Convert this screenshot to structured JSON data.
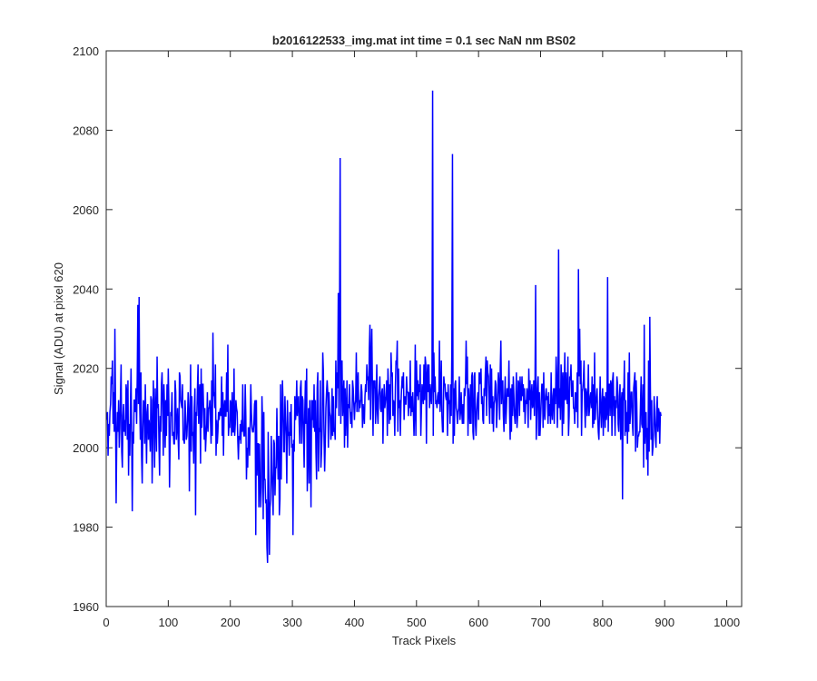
{
  "chart_data": {
    "type": "line",
    "title": "b2016122533_img.mat int time = 0.1 sec  NaN nm BS02",
    "xlabel": "Track Pixels",
    "ylabel": "Signal (ADU) at pixel 620",
    "xlim": [
      0,
      1024
    ],
    "ylim": [
      1960,
      2100
    ],
    "xticks": [
      0,
      100,
      200,
      300,
      400,
      500,
      600,
      700,
      800,
      900,
      1000
    ],
    "yticks": [
      1960,
      1980,
      2000,
      2020,
      2040,
      2060,
      2080,
      2100
    ],
    "grid": false,
    "box": true,
    "line_color": "#0000FF",
    "axis_color": "#262626",
    "series": [
      {
        "x_start": 1,
        "x_step": 1,
        "values": [
          2007,
          2009,
          1998,
          2006,
          2003,
          2009,
          2011,
          2018,
          2016,
          2022,
          2006,
          2014,
          2004,
          2030,
          2011,
          1986,
          2002,
          2009,
          2004,
          2012,
          2000,
          2005,
          2013,
          2021,
          1999,
          1995,
          2008,
          2011,
          2004,
          2007,
          2003,
          2016,
          2014,
          2002,
          2017,
          1993,
          2006,
          1998,
          2010,
          2020,
          2003,
          1984,
          2004,
          2001,
          2012,
          2012,
          2009,
          2015,
          2006,
          2018,
          2036,
          2011,
          2038,
          2011,
          2002,
          2019,
          1998,
          1991,
          2005,
          2012,
          2011,
          2001,
          2016,
          2006,
          1996,
          2009,
          2011,
          2002,
          2007,
          2004,
          1999,
          2013,
          2012,
          1991,
          2002,
          2017,
          2008,
          1995,
          2015,
          2008,
          1999,
          2023,
          2010,
          2011,
          2001,
          1993,
          2008,
          2004,
          2016,
          2019,
          2011,
          1998,
          2016,
          2010,
          2000,
          2012,
          2003,
          2016,
          2008,
          2020,
          2011,
          1990,
          2001,
          2009,
          2008,
          2014,
          2003,
          2004,
          2001,
          2001,
          2017,
          2014,
          2002,
          2005,
          2010,
          2002,
          1997,
          2019,
          2018,
          2012,
          2011,
          2010,
          2016,
          2002,
          2002,
          2001,
          2012,
          2008,
          2002,
          2003,
          2007,
          2014,
          2010,
          1989,
          2006,
          2021,
          1999,
          2013,
          2003,
          2004,
          1996,
          2010,
          2015,
          1983,
          2009,
          2008,
          2015,
          2021,
          2006,
          2014,
          2016,
          1996,
          2020,
          2005,
          2016,
          2016,
          2009,
          2002,
          2010,
          1999,
          2003,
          2006,
          2014,
          2004,
          2010,
          2010,
          2012,
          2007,
          2001,
          2017,
          2003,
          2029,
          2013,
          2014,
          2010,
          2021,
          1998,
          2007,
          2001,
          2004,
          2009,
          2007,
          2009,
          2010,
          2008,
          2018,
          2003,
          2014,
          1998,
          2010,
          2012,
          2008,
          2008,
          2019,
          2009,
          2026,
          2003,
          2006,
          2005,
          2012,
          2011,
          2003,
          2014,
          2004,
          2004,
          2020,
          2003,
          2006,
          2012,
          2010,
          2009,
          2002,
          1997,
          2003,
          2002,
          2006,
          2001,
          2007,
          2004,
          2016,
          2005,
          2003,
          2003,
          2016,
          2008,
          1992,
          2000,
          1995,
          2005,
          2005,
          1998,
          2006,
          2016,
          2009,
          2005,
          2004,
          2004,
          2006,
          2011,
          2012,
          1978,
          2012,
          1993,
          2001,
          2001,
          1985,
          2001,
          1992,
          1985,
          1990,
          2013,
          2006,
          1982,
          2009,
          1992,
          1992,
          1986,
          1987,
          1975,
          1971,
          2004,
          1990,
          1973,
          1985,
          1987,
          2003,
          1994,
          1989,
          1983,
          2002,
          2001,
          1988,
          1995,
          1995,
          2010,
          2000,
          1992,
          2003,
          1983,
          1987,
          2016,
          1992,
          2006,
          2017,
          2011,
          1999,
          1999,
          2013,
          2007,
          2003,
          1991,
          2012,
          2003,
          2004,
          1998,
          2009,
          2003,
          2011,
          2000,
          2001,
          1978,
          2002,
          1999,
          2013,
          2007,
          2009,
          2017,
          2008,
          2011,
          2013,
          2006,
          2001,
          2015,
          2017,
          2001,
          2013,
          2012,
          2003,
          1995,
          2009,
          2017,
          2006,
          2020,
          1989,
          1999,
          2010,
          1991,
          2012,
          2004,
          1985,
          2012,
          2007,
          2012,
          2005,
          2016,
          2004,
          2012,
          1999,
          1992,
          2015,
          2019,
          1994,
          2005,
          2004,
          2017,
          1995,
          1999,
          2005,
          2024,
          2019,
          2003,
          1994,
          2001,
          2010,
          2014,
          2017,
          2014,
          2000,
          2014,
          2009,
          2008,
          2002,
          2004,
          2015,
          2003,
          2013,
          2004,
          2005,
          2002,
          2022,
          2010,
          2019,
          2015,
          2039,
          2008,
          2033,
          2073,
          2006,
          2019,
          2022,
          2008,
          2012,
          2017,
          2000,
          2015,
          2003,
          2009,
          2017,
          2000,
          2011,
          2010,
          2016,
          2010,
          2006,
          2009,
          2005,
          2017,
          2015,
          2011,
          2007,
          2011,
          2012,
          2024,
          2009,
          2016,
          2019,
          2009,
          2012,
          2010,
          2012,
          2016,
          2014,
          2005,
          2011,
          2009,
          2006,
          2013,
          2016,
          2014,
          2021,
          2017,
          2018,
          2012,
          2025,
          2031,
          2007,
          2022,
          2030,
          2015,
          2003,
          2017,
          2015,
          2017,
          2006,
          2011,
          2021,
          2009,
          2006,
          2013,
          2015,
          2018,
          2010,
          2009,
          2014,
          2015,
          2001,
          2011,
          2016,
          2010,
          2012,
          2013,
          2017,
          2003,
          2020,
          2015,
          2006,
          2016,
          2007,
          2024,
          2018,
          2019,
          2008,
          2012,
          2011,
          2003,
          2015,
          2022,
          2021,
          2027,
          2004,
          2020,
          2010,
          2012,
          2003,
          2011,
          2015,
          2018,
          2015,
          2019,
          2007,
          2013,
          2011,
          2011,
          2018,
          2014,
          2014,
          2008,
          2014,
          2010,
          2022,
          2008,
          2013,
          2009,
          2014,
          2009,
          2003,
          2010,
          2026,
          2003,
          2022,
          2013,
          2017,
          2012,
          2016,
          2014,
          2021,
          2003,
          2010,
          2016,
          2013,
          2011,
          2021,
          2012,
          2023,
          2021,
          2001,
          2018,
          2021,
          2014,
          2021,
          2010,
          2016,
          2013,
          2011,
          2017,
          2090,
          2003,
          2024,
          2014,
          2018,
          2011,
          2012,
          2010,
          2013,
          2014,
          2011,
          2027,
          2009,
          2013,
          2022,
          2008,
          2004,
          2004,
          2018,
          2016,
          2016,
          2013,
          2012,
          2014,
          2003,
          2016,
          2011,
          2012,
          2006,
          2016,
          2008,
          2025,
          2074,
          2001,
          2015,
          2003,
          2016,
          2017,
          2010,
          2009,
          2006,
          2009,
          2010,
          2018,
          2007,
          2009,
          2014,
          2009,
          2006,
          2011,
          2006,
          2015,
          2013,
          2016,
          2027,
          2016,
          2023,
          2003,
          2015,
          2010,
          2006,
          2016,
          2006,
          2018,
          2019,
          2004,
          2002,
          2018,
          2019,
          2006,
          2003,
          2009,
          2012,
          2014,
          2007,
          2019,
          2016,
          2018,
          2020,
          2011,
          2013,
          2007,
          2006,
          2015,
          2013,
          2019,
          2023,
          2008,
          2022,
          2019,
          2018,
          2011,
          2006,
          2021,
          2010,
          2020,
          2006,
          2013,
          2004,
          2011,
          2012,
          2017,
          2016,
          2005,
          2009,
          2014,
          2019,
          2016,
          2007,
          2020,
          2027,
          2011,
          2016,
          2017,
          2008,
          2004,
          2013,
          2018,
          2006,
          2010,
          2015,
          2013,
          2013,
          2022,
          2009,
          2002,
          2015,
          2004,
          2016,
          2008,
          2018,
          2013,
          2008,
          2006,
          2010,
          2019,
          2005,
          2008,
          2017,
          2016,
          2008,
          2018,
          2012,
          2012,
          2018,
          2013,
          2016,
          2009,
          2015,
          2006,
          2012,
          2011,
          2015,
          2013,
          2005,
          2020,
          2012,
          2017,
          2007,
          2013,
          2016,
          2010,
          2011,
          2017,
          2008,
          2016,
          2041,
          2002,
          2008,
          2015,
          2018,
          2003,
          2014,
          2003,
          2007,
          2012,
          2016,
          2016,
          2005,
          2019,
          2009,
          2007,
          2013,
          2015,
          2012,
          2013,
          2006,
          2014,
          2008,
          2011,
          2006,
          2019,
          2009,
          2007,
          2013,
          2015,
          2006,
          2015,
          2011,
          2023,
          2018,
          2005,
          2013,
          2050,
          2010,
          2015,
          2007,
          2021,
          2017,
          2003,
          2019,
          2006,
          2014,
          2024,
          2012,
          2019,
          2013,
          2011,
          2023,
          2003,
          2008,
          2018,
          2017,
          2021,
          2013,
          2013,
          2017,
          2010,
          2010,
          2006,
          2014,
          2013,
          2009,
          2019,
          2005,
          2045,
          2018,
          2030,
          2016,
          2022,
          2003,
          2014,
          2015,
          2017,
          2022,
          2011,
          2005,
          2015,
          2014,
          2008,
          2012,
          2021,
          2008,
          2010,
          2013,
          2014,
          2010,
          2018,
          2005,
          2016,
          2006,
          2024,
          2007,
          2011,
          2013,
          2015,
          2008,
          2004,
          2002,
          2010,
          2018,
          2009,
          2005,
          2012,
          2015,
          2003,
          2013,
          2012,
          2005,
          2014,
          2007,
          2009,
          2043,
          2004,
          2016,
          2016,
          2008,
          2017,
          2016,
          2003,
          2017,
          2019,
          2008,
          2013,
          2003,
          2012,
          2010,
          2018,
          2016,
          2006,
          2004,
          2013,
          2016,
          2002,
          2011,
          2014,
          1987,
          2015,
          2012,
          2022,
          2003,
          2012,
          2004,
          2009,
          2001,
          2019,
          2004,
          2024,
          2006,
          2009,
          2014,
          2014,
          2006,
          2003,
          2015,
          2017,
          2019,
          1999,
          2017,
          2011,
          2000,
          2003,
          2003,
          2004,
          2004,
          2011,
          2018,
          2006,
          2005,
          2016,
          1995,
          2031,
          2001,
          2007,
          2009,
          1997,
          2005,
          1993,
          2022,
          1999,
          2033,
          2014,
          2002,
          2012,
          1998,
          2000,
          2004,
          2013,
          2008,
          2003,
          2000,
          2009,
          2013,
          2004,
          2010,
          2009,
          2001,
          2009,
          2008
        ]
      }
    ]
  }
}
